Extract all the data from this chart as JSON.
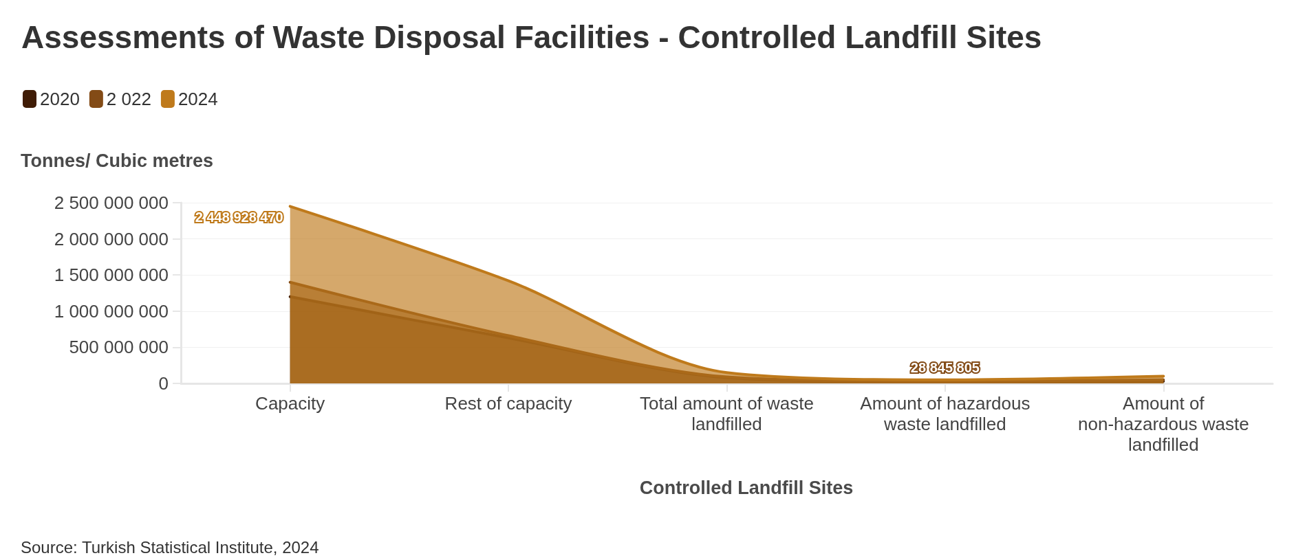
{
  "chart_data": {
    "type": "area",
    "title": "Assessments of Waste Disposal Facilities - Controlled Landfill Sites",
    "xlabel": "Controlled Landfill Sites",
    "ylabel": "Tonnes/ Cubic metres",
    "annotations": [
      "Source: Turkish Statistical Institute, 2024"
    ],
    "categories": [
      "Capacity",
      "Rest of capacity",
      "Total amount of waste landfilled",
      "Amount of hazardous waste landfilled",
      "Amount of non-hazardous waste landfilled"
    ],
    "series": [
      {
        "name": "2020",
        "color": "#401c06",
        "values": [
          1200000000,
          630000000,
          80000000,
          20000000,
          30000000
        ]
      },
      {
        "name": "2 022",
        "color": "#834b16",
        "values": [
          1400000000,
          660000000,
          90000000,
          28845805,
          50000000
        ],
        "value_labels": [
          null,
          null,
          null,
          "28 845 805",
          null
        ]
      },
      {
        "name": "2024",
        "color": "#bf7a1b",
        "values": [
          2448928470,
          1420000000,
          150000000,
          50000000,
          100000000
        ],
        "value_labels": [
          "2 448 928 470",
          null,
          null,
          null,
          null
        ]
      }
    ],
    "ylim": [
      0,
      2500000000
    ],
    "yticks": [
      0,
      500000000,
      1000000000,
      1500000000,
      2000000000,
      2500000000
    ],
    "grid": "y",
    "legend": "top left",
    "marker": "none",
    "line_style": "solid"
  }
}
